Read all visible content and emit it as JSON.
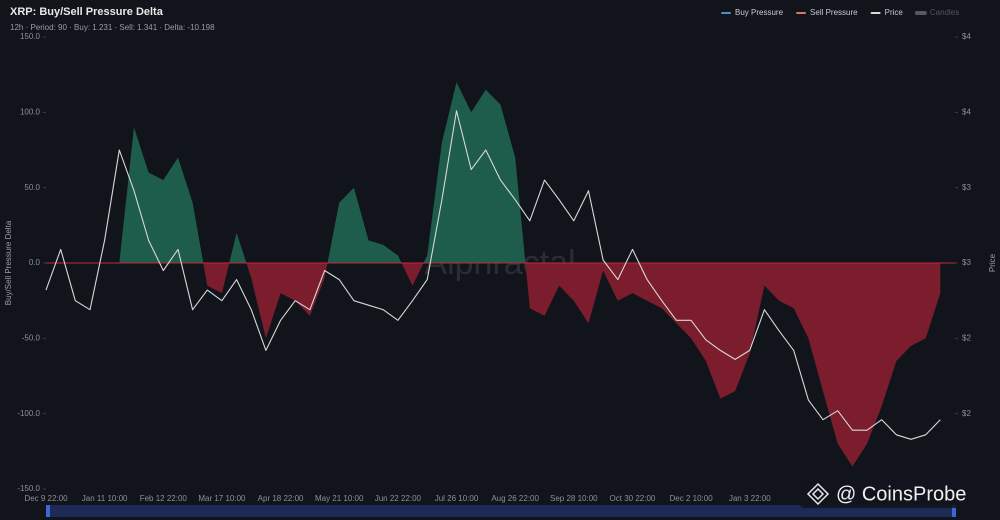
{
  "chart_data": {
    "type": "delta-area-price",
    "title": "XRP: Buy/Sell Pressure Delta",
    "subtitle": "12h  ·  Period: 90  ·  Buy: 1.231  ·  Sell: 1.341  ·  Delta: -10.198",
    "ylabel": "Buy/Sell Pressure Delta",
    "y2label": "Price",
    "watermark": "Alphractal",
    "credit": "@ CoinsProbe",
    "legend": [
      {
        "name": "Buy Pressure",
        "color": "#4f8fc0"
      },
      {
        "name": "Sell Pressure",
        "color": "#d9785a"
      },
      {
        "name": "Price",
        "color": "#d8d8d8"
      },
      {
        "name": "Candles",
        "color": "#d8d8d8",
        "disabled": true
      }
    ],
    "categories": [
      "Dec 9 22:00",
      null,
      null,
      null,
      "Jan 11 10:00",
      null,
      null,
      null,
      "Feb 12 22:00",
      null,
      null,
      null,
      "Mar 17 10:00",
      null,
      null,
      null,
      "Apr 18 22:00",
      null,
      null,
      null,
      "May 21 10:00",
      null,
      null,
      null,
      "Jun 22 22:00",
      null,
      null,
      null,
      "Jul 26 10:00",
      null,
      null,
      null,
      "Aug 26 22:00",
      null,
      null,
      null,
      "Sep 28 10:00",
      null,
      null,
      null,
      "Oct 30 22:00",
      null,
      null,
      null,
      "Dec 2 10:00",
      null,
      null,
      null,
      "Jan 3 22:00",
      null,
      null,
      null,
      null,
      null,
      null,
      null,
      null,
      null,
      null,
      null,
      null,
      null
    ],
    "series": [
      {
        "name": "Delta",
        "positive_color": "#1e5c4b",
        "negative_color": "#7b1d2d",
        "zero_line_color": "#c0283d",
        "values": [
          0,
          0,
          0,
          0,
          0,
          0,
          90,
          60,
          55,
          70,
          40,
          -15,
          -20,
          20,
          -10,
          -50,
          -20,
          -25,
          -35,
          -10,
          40,
          50,
          15,
          12,
          5,
          -15,
          5,
          80,
          120,
          100,
          115,
          105,
          70,
          -30,
          -35,
          -15,
          -25,
          -40,
          -5,
          -25,
          -20,
          -25,
          -30,
          -40,
          -50,
          -65,
          -90,
          -85,
          -60,
          -15,
          -25,
          -30,
          -50,
          -85,
          -120,
          -135,
          -120,
          -95,
          -65,
          -55,
          -50,
          -20
        ]
      },
      {
        "name": "Price",
        "color": "#d8d8d8",
        "axis": "y2",
        "values": [
          2.32,
          2.59,
          2.25,
          2.19,
          2.65,
          3.25,
          2.98,
          2.65,
          2.45,
          2.59,
          2.19,
          2.32,
          2.25,
          2.39,
          2.19,
          1.92,
          2.12,
          2.25,
          2.19,
          2.45,
          2.39,
          2.25,
          2.22,
          2.19,
          2.12,
          2.25,
          2.39,
          2.92,
          3.51,
          3.12,
          3.25,
          3.05,
          2.92,
          2.78,
          3.05,
          2.92,
          2.78,
          2.98,
          2.52,
          2.39,
          2.59,
          2.39,
          2.25,
          2.12,
          2.12,
          1.99,
          1.92,
          1.86,
          1.92,
          2.19,
          2.05,
          1.92,
          1.59,
          1.46,
          1.52,
          1.39,
          1.39,
          1.46,
          1.36,
          1.33,
          1.36,
          1.46
        ]
      }
    ],
    "ylim": [
      -150,
      150
    ],
    "yticks": [
      {
        "value": -150,
        "label": "-150.0"
      },
      {
        "value": -100,
        "label": "-100.0"
      },
      {
        "value": -50,
        "label": "-50.0"
      },
      {
        "value": 0,
        "label": "0.0"
      },
      {
        "value": 50,
        "label": "50.0"
      },
      {
        "value": 100,
        "label": "100.0"
      },
      {
        "value": 150,
        "label": "150.0"
      }
    ],
    "y2lim": [
      1.0,
      4.0
    ],
    "y2ticks": [
      {
        "value": 1.5,
        "label": "$2"
      },
      {
        "value": 2.0,
        "label": "$2"
      },
      {
        "value": 2.5,
        "label": "$3"
      },
      {
        "value": 3.0,
        "label": "$3"
      },
      {
        "value": 3.5,
        "label": "$4"
      },
      {
        "value": 4.0,
        "label": "$4"
      }
    ],
    "grid": false
  }
}
